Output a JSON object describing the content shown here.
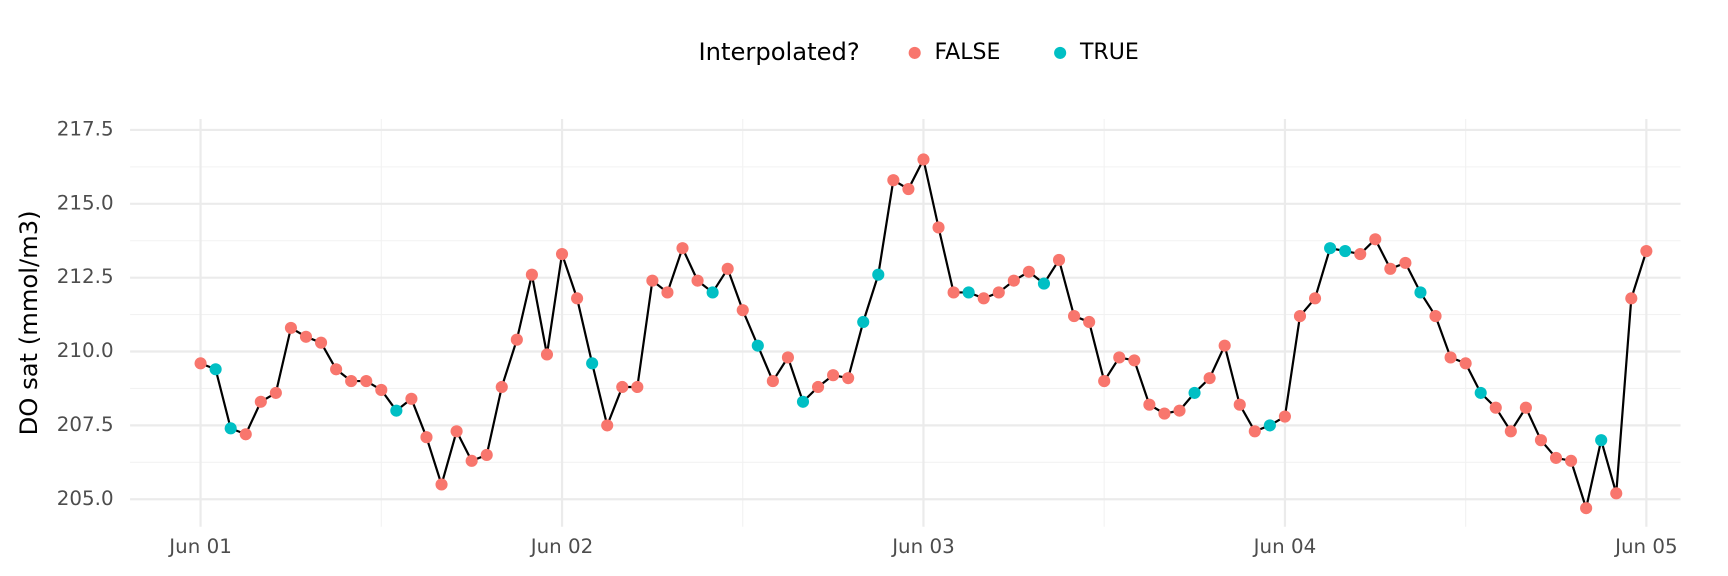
{
  "chart_data": {
    "type": "line",
    "y_label": "DO sat (mmol/m3)",
    "legend": {
      "title": "Interpolated?",
      "position": "top",
      "entries": [
        {
          "name": "FALSE",
          "value": false,
          "color": "#F8766D"
        },
        {
          "name": "TRUE",
          "value": true,
          "color": "#00BFC4"
        }
      ]
    },
    "line_color": "#000000",
    "x": [
      0,
      1,
      2,
      3,
      4,
      5,
      6,
      7,
      8,
      9,
      10,
      11,
      12,
      13,
      14,
      15,
      16,
      17,
      18,
      19,
      20,
      21,
      22,
      23,
      24,
      25,
      26,
      27,
      28,
      29,
      30,
      31,
      32,
      33,
      34,
      35,
      36,
      37,
      38,
      39,
      40,
      41,
      42,
      43,
      44,
      45,
      46,
      47,
      48,
      49,
      50,
      51,
      52,
      53,
      54,
      55,
      56,
      57,
      58,
      59,
      60,
      61,
      62,
      63,
      64,
      65,
      66,
      67,
      68,
      69,
      70,
      71,
      72,
      73,
      74,
      75,
      76,
      77,
      78,
      79,
      80,
      81,
      82,
      83,
      84,
      85,
      86,
      87,
      88,
      89,
      90,
      91,
      92,
      93,
      94,
      95,
      96
    ],
    "values": [
      209.6,
      209.4,
      207.4,
      207.2,
      208.3,
      208.6,
      210.8,
      210.5,
      210.3,
      209.4,
      209.0,
      209.0,
      208.7,
      208.0,
      208.4,
      207.1,
      205.5,
      207.3,
      206.3,
      206.5,
      208.8,
      210.4,
      212.6,
      209.9,
      213.3,
      211.8,
      209.6,
      207.5,
      208.8,
      208.8,
      212.4,
      212.0,
      213.5,
      212.4,
      212.0,
      212.8,
      211.4,
      210.2,
      209.0,
      209.8,
      208.3,
      208.8,
      209.2,
      209.1,
      211.0,
      212.6,
      215.8,
      215.5,
      216.5,
      214.2,
      212.0,
      212.0,
      211.8,
      212.0,
      212.4,
      212.7,
      212.3,
      213.1,
      211.2,
      211.0,
      209.0,
      209.8,
      209.7,
      208.2,
      207.9,
      208.0,
      208.6,
      209.1,
      210.2,
      208.2,
      207.3,
      207.5,
      207.8,
      211.2,
      211.8,
      213.5,
      213.4,
      213.3,
      213.8,
      212.8,
      213.0,
      212.0,
      211.2,
      209.8,
      209.6,
      208.6,
      208.1,
      207.3,
      208.1,
      207.0,
      206.4,
      206.3,
      204.7,
      207.0,
      205.2,
      211.8,
      213.4
    ],
    "interpolated": [
      false,
      true,
      true,
      false,
      false,
      false,
      false,
      false,
      false,
      false,
      false,
      false,
      false,
      true,
      false,
      false,
      false,
      false,
      false,
      false,
      false,
      false,
      false,
      false,
      false,
      false,
      true,
      false,
      false,
      false,
      false,
      false,
      false,
      false,
      true,
      false,
      false,
      true,
      false,
      false,
      true,
      false,
      false,
      false,
      true,
      true,
      false,
      false,
      false,
      false,
      false,
      true,
      false,
      false,
      false,
      false,
      true,
      false,
      false,
      false,
      false,
      false,
      false,
      false,
      false,
      false,
      true,
      false,
      false,
      false,
      false,
      true,
      false,
      false,
      false,
      true,
      true,
      false,
      false,
      false,
      false,
      true,
      false,
      false,
      false,
      true,
      false,
      false,
      false,
      false,
      false,
      false,
      false,
      true,
      false,
      false,
      false
    ],
    "xlim": [
      -4.68,
      98.27
    ],
    "xticks": [
      {
        "value": 0,
        "label": "Jun 01"
      },
      {
        "value": 24,
        "label": "Jun 02"
      },
      {
        "value": 48,
        "label": "Jun 03"
      },
      {
        "value": 72,
        "label": "Jun 04"
      },
      {
        "value": 96,
        "label": "Jun 05"
      }
    ],
    "ylim": [
      204.07,
      217.87
    ],
    "yticks": [
      {
        "value": 205,
        "label": "205.0"
      },
      {
        "value": 207.5,
        "label": "207.5"
      },
      {
        "value": 210,
        "label": "210.0"
      },
      {
        "value": 212.5,
        "label": "212.5"
      },
      {
        "value": 215,
        "label": "215.0"
      },
      {
        "value": 217.5,
        "label": "217.5"
      }
    ],
    "grid": true
  }
}
